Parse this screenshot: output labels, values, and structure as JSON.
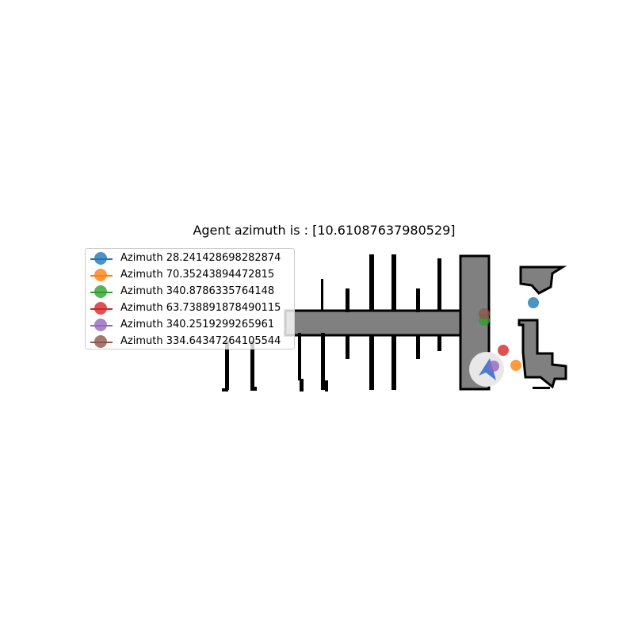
{
  "title": "Agent azimuth is : [10.61087637980529]",
  "legend": {
    "entries": [
      {
        "label": "Azimuth 28.241428698282874",
        "color": "#1f77b4"
      },
      {
        "label": "Azimuth 70.35243894472815",
        "color": "#ff7f0e"
      },
      {
        "label": "Azimuth 340.8786335764148",
        "color": "#2ca02c"
      },
      {
        "label": "Azimuth 63.738891878490115",
        "color": "#d62728"
      },
      {
        "label": "Azimuth 340.2519299265961",
        "color": "#9467bd"
      },
      {
        "label": "Azimuth 334.64347264105544",
        "color": "#8c564b"
      }
    ]
  },
  "colors": {
    "floor": "#808080",
    "wall": "#000000",
    "agent": "#4a7bd0",
    "agent_halo": "#e6e6e6"
  }
}
